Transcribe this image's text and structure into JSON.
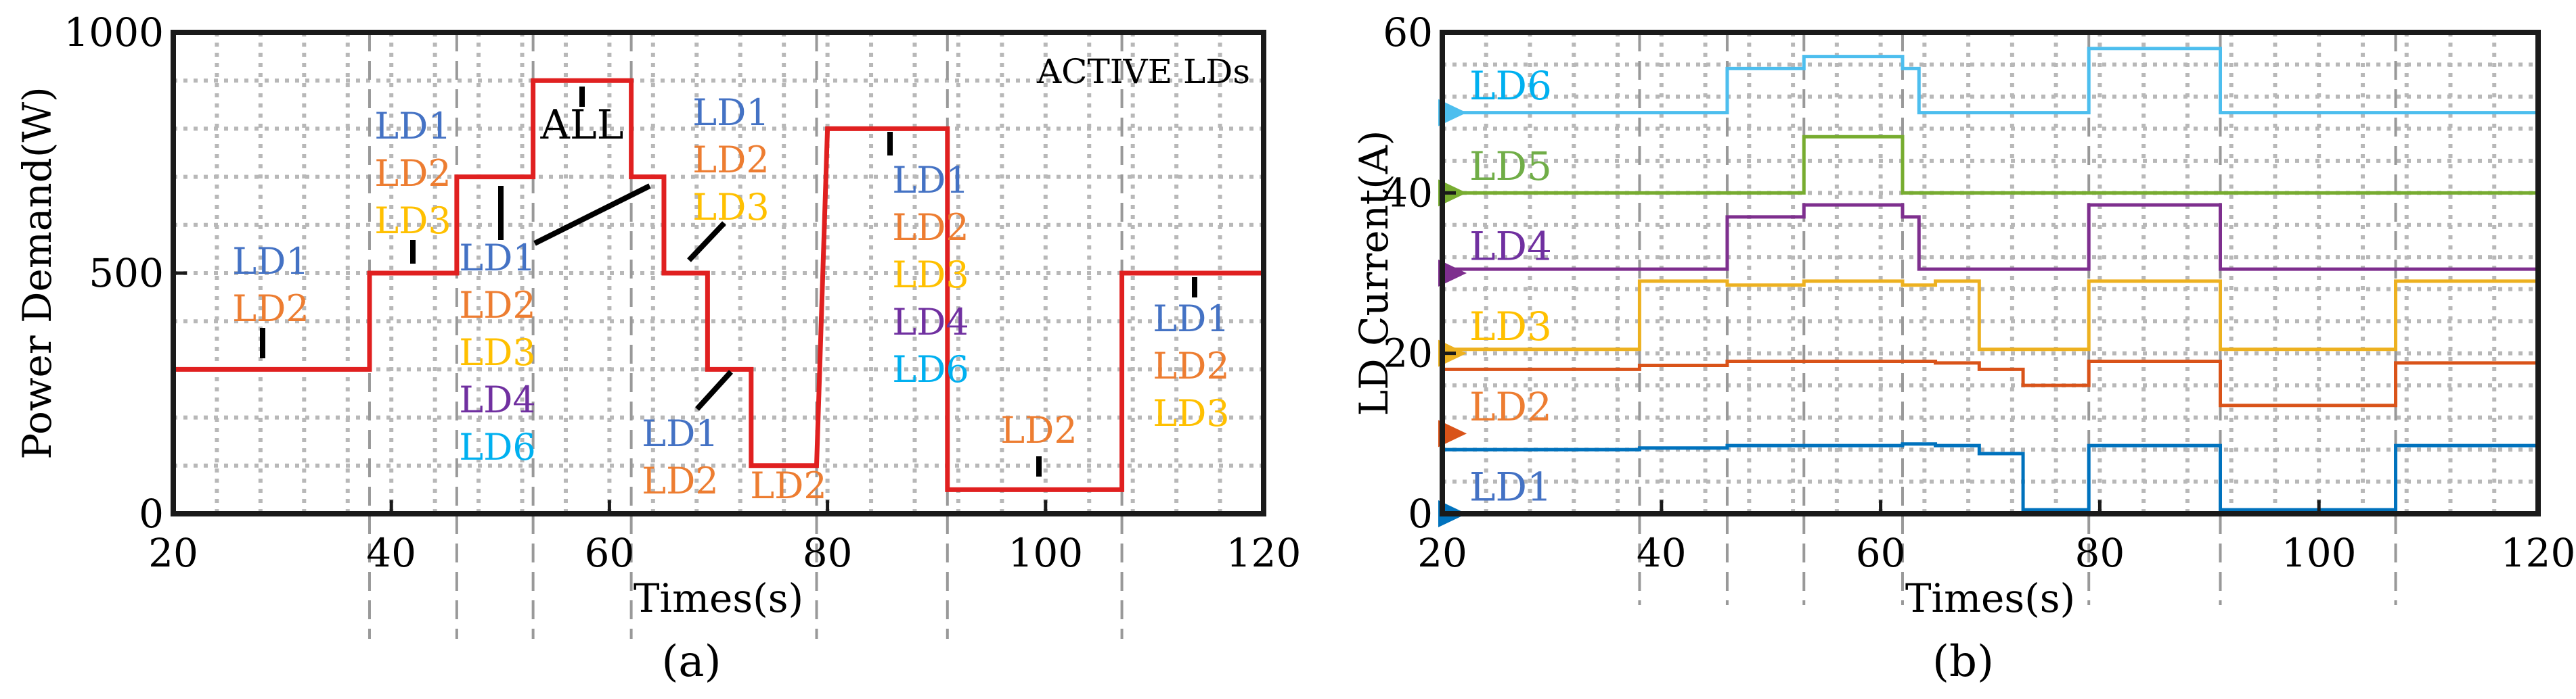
{
  "chart_data": [
    {
      "panel_label": "(a)",
      "type": "line",
      "xlabel": "Times(s)",
      "ylabel": "Power Demand(W)",
      "xlim": [
        20,
        120
      ],
      "ylim": [
        0,
        1000
      ],
      "xticks": [
        20,
        40,
        60,
        80,
        100,
        120
      ],
      "yticks": [
        0,
        500,
        1000
      ],
      "grid": true,
      "legend_text": "ACTIVE LDs",
      "series": [
        {
          "name": "Power Demand",
          "color": "#e02020",
          "x": [
            20,
            38,
            38,
            46,
            46,
            53,
            53,
            62,
            62,
            65,
            65,
            69,
            69,
            73,
            73,
            79,
            80,
            91,
            91,
            107,
            107,
            120
          ],
          "y": [
            300,
            300,
            500,
            500,
            700,
            700,
            900,
            900,
            700,
            700,
            500,
            500,
            300,
            300,
            100,
            100,
            800,
            800,
            50,
            50,
            500,
            500
          ]
        }
      ],
      "annotations": [
        {
          "lines": [
            "LD1",
            "LD2"
          ],
          "colors": [
            "#4472c4",
            "#ed7d31"
          ],
          "pointer": [
            28,
            350
          ]
        },
        {
          "lines": [
            "LD1",
            "LD2",
            "LD3"
          ],
          "colors": [
            "#4472c4",
            "#ed7d31",
            "#ffc000"
          ],
          "pointer": [
            42.5,
            550
          ]
        },
        {
          "lines": [
            "LD1",
            "LD2",
            "LD3",
            "LD4",
            "LD6"
          ],
          "colors": [
            "#4472c4",
            "#ed7d31",
            "#ffc000",
            "#7030a0",
            "#00b0f0"
          ],
          "pointer": [
            49.5,
            640
          ]
        },
        {
          "lines": [
            "ALL"
          ],
          "colors": [
            "#000000"
          ],
          "pointer": [
            57.5,
            855
          ]
        },
        {
          "lines": [
            "LD1",
            "LD2",
            "LD3"
          ],
          "colors": [
            "#4472c4",
            "#ed7d31",
            "#ffc000"
          ],
          "pointer": [
            68.5,
            550
          ]
        },
        {
          "lines": [
            "LD1",
            "LD2"
          ],
          "colors": [
            "#4472c4",
            "#ed7d31"
          ],
          "pointer": [
            68,
            220
          ]
        },
        {
          "lines": [
            "LD2"
          ],
          "colors": [
            "#ed7d31"
          ],
          "pointer": null
        },
        {
          "lines": [
            "LD1",
            "LD2",
            "LD3",
            "LD4",
            "LD6"
          ],
          "colors": [
            "#4472c4",
            "#ed7d31",
            "#ffc000",
            "#7030a0",
            "#00b0f0"
          ],
          "pointer": [
            85.5,
            770
          ]
        },
        {
          "lines": [
            "LD2"
          ],
          "colors": [
            "#ed7d31"
          ],
          "pointer": [
            99,
            90
          ]
        },
        {
          "lines": [
            "LD1",
            "LD2",
            "LD3"
          ],
          "colors": [
            "#4472c4",
            "#ed7d31",
            "#ffc000"
          ],
          "pointer": [
            113,
            470
          ]
        }
      ]
    },
    {
      "panel_label": "(b)",
      "type": "line",
      "xlabel": "Times(s)",
      "ylabel": "LD Current(A)",
      "xlim": [
        20,
        120
      ],
      "ylim": [
        0,
        60
      ],
      "xticks": [
        20,
        40,
        60,
        80,
        100,
        120
      ],
      "yticks": [
        0,
        20,
        40,
        60
      ],
      "grid": true,
      "series": [
        {
          "name": "LD1",
          "color": "#0072bd",
          "marker_y": 0,
          "x": [
            20,
            38,
            38,
            46,
            46,
            53,
            53,
            62,
            62,
            65,
            65,
            69,
            69,
            73,
            73,
            79,
            79,
            91,
            91,
            107,
            107,
            120
          ],
          "y": [
            8,
            8,
            8.2,
            8.2,
            8.5,
            8.5,
            8.5,
            8.5,
            8.7,
            8.7,
            8.5,
            8.5,
            7.5,
            7.5,
            0.5,
            0.5,
            8.5,
            8.5,
            0.5,
            0.5,
            8.5,
            8.5
          ]
        },
        {
          "name": "LD2",
          "color": "#d95319",
          "marker_y": 10,
          "x": [
            20,
            38,
            38,
            46,
            46,
            53,
            53,
            62,
            62,
            65,
            65,
            69,
            69,
            73,
            73,
            79,
            79,
            91,
            91,
            107,
            107,
            120
          ],
          "y": [
            18,
            18,
            18.5,
            18.5,
            19,
            19,
            19,
            19,
            19,
            19,
            18.8,
            18.8,
            18,
            18,
            16,
            16,
            19,
            19,
            13.5,
            13.5,
            18.8,
            18.8
          ]
        },
        {
          "name": "LD3",
          "color": "#edb120",
          "marker_y": 20,
          "x": [
            20,
            38,
            38,
            46,
            46,
            53,
            53,
            62,
            62,
            65,
            65,
            69,
            69,
            79,
            79,
            91,
            91,
            107,
            107,
            120
          ],
          "y": [
            20.5,
            20.5,
            29,
            29,
            28.5,
            28.5,
            29,
            29,
            28.5,
            28.5,
            29,
            29,
            20.5,
            20.5,
            29,
            29,
            20.5,
            20.5,
            29,
            29
          ]
        },
        {
          "name": "LD4",
          "color": "#7e2f8e",
          "marker_y": 30,
          "x": [
            20,
            46,
            46,
            53,
            53,
            62,
            62,
            63.5,
            63.5,
            79,
            79,
            91,
            91,
            120
          ],
          "y": [
            30.5,
            30.5,
            37,
            37,
            38.5,
            38.5,
            37,
            37,
            30.5,
            30.5,
            38.5,
            38.5,
            30.5,
            30.5
          ]
        },
        {
          "name": "LD5",
          "color": "#77ac30",
          "marker_y": 40,
          "x": [
            20,
            53,
            53,
            62,
            62,
            120
          ],
          "y": [
            40,
            40,
            47,
            47,
            40,
            40
          ]
        },
        {
          "name": "LD6",
          "color": "#4dbeee",
          "marker_y": 50,
          "x": [
            20,
            46,
            46,
            53,
            53,
            62,
            62,
            63.5,
            63.5,
            79,
            79,
            91,
            91,
            120
          ],
          "y": [
            50,
            50,
            55.5,
            55.5,
            57,
            57,
            55.5,
            55.5,
            50,
            50,
            58,
            58,
            50,
            50
          ]
        }
      ],
      "series_labels": [
        {
          "text": "LD6",
          "color": "#00b0f0"
        },
        {
          "text": "LD5",
          "color": "#70ad47"
        },
        {
          "text": "LD4",
          "color": "#7030a0"
        },
        {
          "text": "LD3",
          "color": "#ffc000"
        },
        {
          "text": "LD2",
          "color": "#ed7d31"
        },
        {
          "text": "LD1",
          "color": "#4472c4"
        }
      ]
    }
  ],
  "event_times": [
    38,
    46,
    53,
    62,
    79,
    91,
    107
  ]
}
